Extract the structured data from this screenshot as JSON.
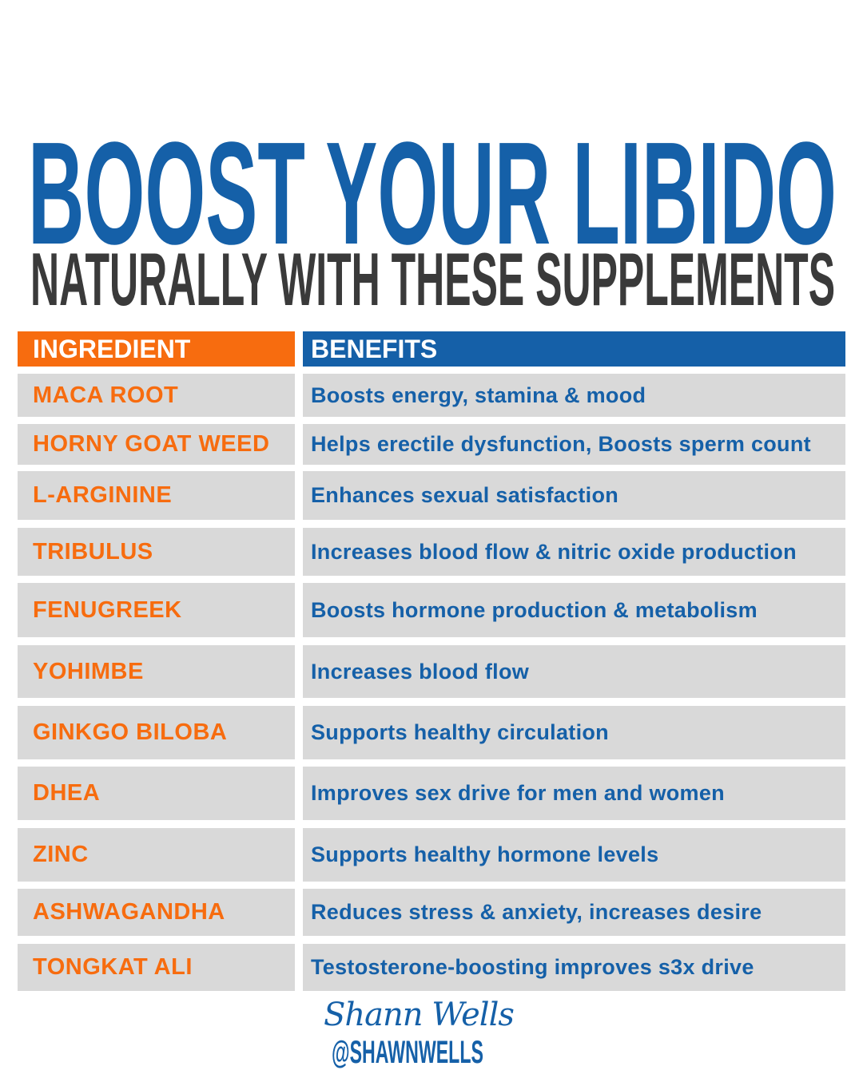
{
  "title": "BOOST YOUR LIBIDO",
  "subtitle": "NATURALLY WITH THESE SUPPLEMENTS",
  "table": {
    "headers": {
      "ingredient": "INGREDIENT",
      "benefits": "BENEFITS"
    },
    "rows": [
      {
        "ingredient": "MACA ROOT",
        "benefit": "Boosts energy, stamina & mood"
      },
      {
        "ingredient": "HORNY GOAT WEED",
        "benefit": "Helps erectile dysfunction, Boosts sperm count"
      },
      {
        "ingredient": "L-ARGININE",
        "benefit": "Enhances sexual satisfaction"
      },
      {
        "ingredient": "TRIBULUS",
        "benefit": "Increases blood flow & nitric oxide production"
      },
      {
        "ingredient": "FENUGREEK",
        "benefit": "Boosts hormone production & metabolism"
      },
      {
        "ingredient": "YOHIMBE",
        "benefit": "Increases blood flow"
      },
      {
        "ingredient": "GINKGO BILOBA",
        "benefit": "Supports healthy circulation"
      },
      {
        "ingredient": "DHEA",
        "benefit": "Improves sex drive for men and women"
      },
      {
        "ingredient": "ZINC",
        "benefit": "Supports healthy hormone levels"
      },
      {
        "ingredient": "ASHWAGANDHA",
        "benefit": "Reduces stress & anxiety, increases desire"
      },
      {
        "ingredient": "TONGKAT ALI",
        "benefit": "Testosterone-boosting improves s3x drive"
      }
    ]
  },
  "footer": {
    "signature": "Shann Wells",
    "handle": "@SHAWNWELLS"
  },
  "colors": {
    "orange": "#f76c0f",
    "blue": "#1560a8",
    "row_bg": "#d9d9d9",
    "subtitle": "#3a3a3a"
  }
}
